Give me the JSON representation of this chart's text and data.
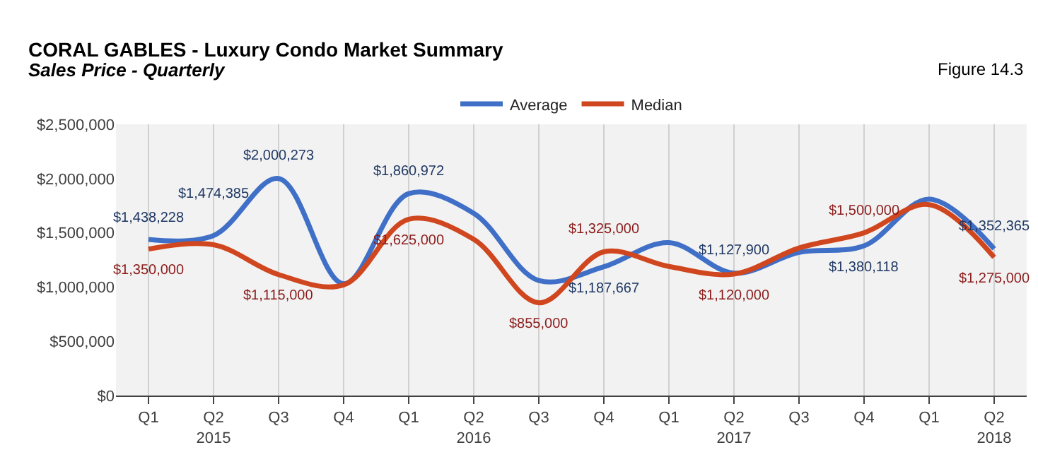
{
  "chart_data": {
    "type": "line",
    "title": "CORAL GABLES - Luxury Condo Market Summary",
    "subtitle": "Sales Price - Quarterly",
    "annotations": [
      "Figure 14.3"
    ],
    "categories": [
      "Q1",
      "Q2\n2015",
      "Q3",
      "Q4",
      "Q1",
      "Q2\n2016",
      "Q3",
      "Q4",
      "Q1",
      "Q2\n2017",
      "Q3",
      "Q4",
      "Q1",
      "Q2\n2018"
    ],
    "series": [
      {
        "name": "Average",
        "color": "#3f6fc6",
        "values": [
          1438228,
          1474385,
          2000273,
          1030000,
          1860972,
          1680000,
          1060000,
          1187667,
          1410000,
          1127900,
          1320000,
          1380118,
          1810000,
          1352365
        ],
        "value_labels": [
          "$1,438,228",
          "$1,474,385",
          "$2,000,273",
          null,
          "$1,860,972",
          null,
          null,
          "$1,187,667",
          null,
          "$1,127,900",
          null,
          "$1,380,118",
          null,
          "$1,352,365"
        ]
      },
      {
        "name": "Median",
        "color": "#d0461e",
        "values": [
          1350000,
          1390000,
          1115000,
          1020000,
          1625000,
          1440000,
          855000,
          1325000,
          1190000,
          1120000,
          1360000,
          1500000,
          1760000,
          1275000
        ],
        "value_labels": [
          "$1,350,000",
          null,
          "$1,115,000",
          null,
          "$1,625,000",
          null,
          "$855,000",
          "$1,325,000",
          null,
          "$1,120,000",
          null,
          "$1,500,000",
          null,
          "$1,275,000"
        ]
      }
    ],
    "ylim": [
      0,
      2500000
    ],
    "yticks": [
      {
        "value": 0,
        "label": "$0"
      },
      {
        "value": 500000,
        "label": "$500,000"
      },
      {
        "value": 1000000,
        "label": "$1,000,000"
      },
      {
        "value": 1500000,
        "label": "$1,500,000"
      },
      {
        "value": 2000000,
        "label": "$2,000,000"
      },
      {
        "value": 2500000,
        "label": "$2,500,000"
      }
    ],
    "grid": "x",
    "legend": "top",
    "line_style": "solid",
    "marker": "none"
  }
}
